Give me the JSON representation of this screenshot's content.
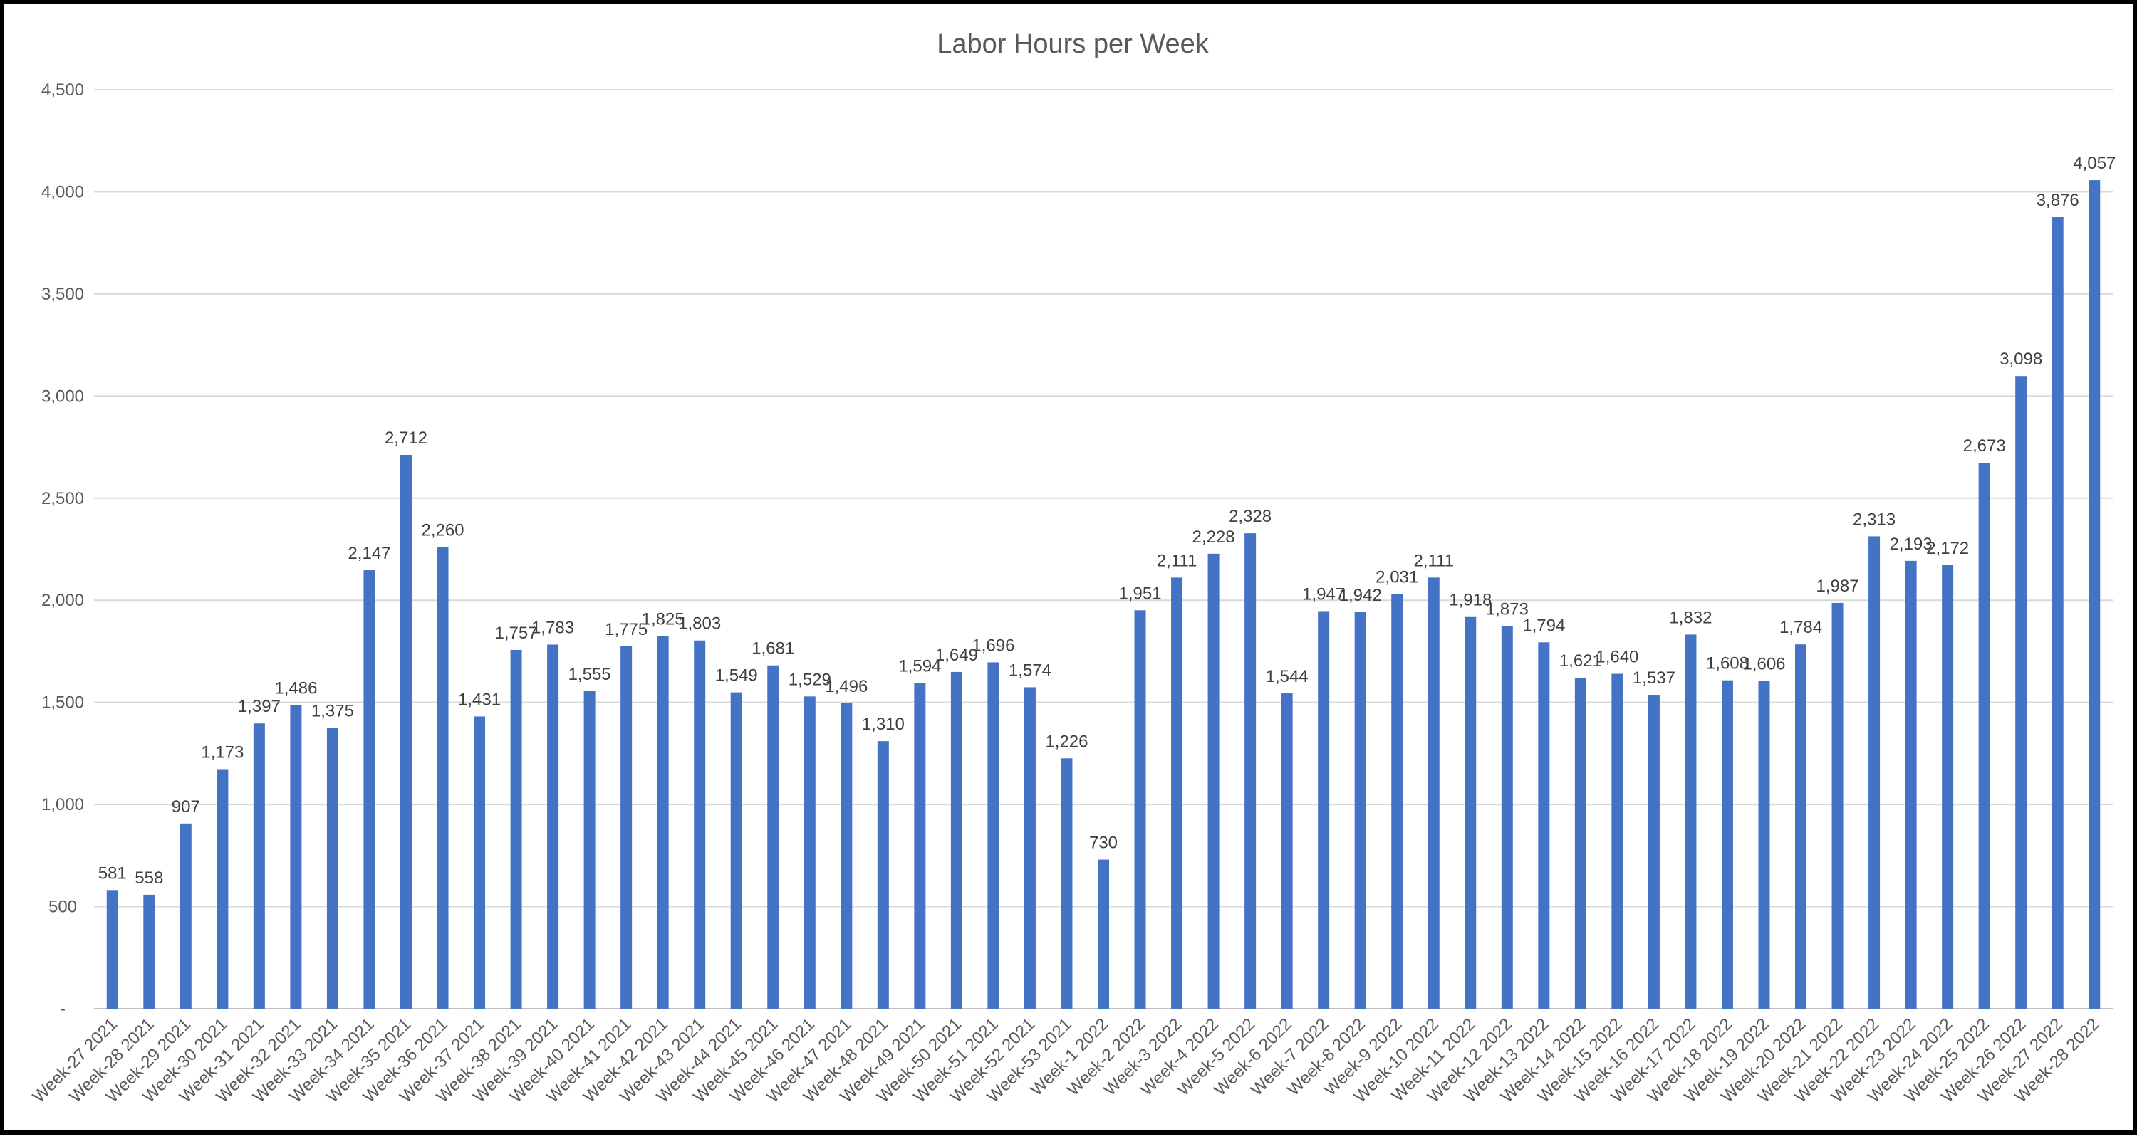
{
  "chart_data": {
    "type": "bar",
    "title": "Labor Hours per Week",
    "xlabel": "",
    "ylabel": "",
    "ylim": [
      0,
      4500
    ],
    "yticks": [
      {
        "value": 0,
        "label": "-"
      },
      {
        "value": 500,
        "label": "500"
      },
      {
        "value": 1000,
        "label": "1,000"
      },
      {
        "value": 1500,
        "label": "1,500"
      },
      {
        "value": 2000,
        "label": "2,000"
      },
      {
        "value": 2500,
        "label": "2,500"
      },
      {
        "value": 3000,
        "label": "3,000"
      },
      {
        "value": 3500,
        "label": "3,500"
      },
      {
        "value": 4000,
        "label": "4,000"
      },
      {
        "value": 4500,
        "label": "4,500"
      }
    ],
    "grid": true,
    "legend": "none",
    "bar_color": "#4472C4",
    "categories": [
      "Week-27 2021",
      "Week-28 2021",
      "Week-29 2021",
      "Week-30 2021",
      "Week-31 2021",
      "Week-32 2021",
      "Week-33 2021",
      "Week-34 2021",
      "Week-35 2021",
      "Week-36 2021",
      "Week-37 2021",
      "Week-38 2021",
      "Week-39 2021",
      "Week-40 2021",
      "Week-41 2021",
      "Week-42 2021",
      "Week-43 2021",
      "Week-44 2021",
      "Week-45 2021",
      "Week-46 2021",
      "Week-47 2021",
      "Week-48 2021",
      "Week-49 2021",
      "Week-50 2021",
      "Week-51 2021",
      "Week-52 2021",
      "Week-53 2021",
      "Week-1 2022",
      "Week-2 2022",
      "Week-3 2022",
      "Week-4 2022",
      "Week-5 2022",
      "Week-6 2022",
      "Week-7 2022",
      "Week-8 2022",
      "Week-9 2022",
      "Week-10 2022",
      "Week-11 2022",
      "Week-12 2022",
      "Week-13 2022",
      "Week-14 2022",
      "Week-15 2022",
      "Week-16 2022",
      "Week-17 2022",
      "Week-18 2022",
      "Week-19 2022",
      "Week-20 2022",
      "Week-21 2022",
      "Week-22 2022",
      "Week-23 2022",
      "Week-24 2022",
      "Week-25 2022",
      "Week-26 2022",
      "Week-27 2022",
      "Week-28 2022"
    ],
    "values": [
      581,
      558,
      907,
      1173,
      1397,
      1486,
      1375,
      2147,
      2712,
      2260,
      1431,
      1757,
      1783,
      1555,
      1775,
      1825,
      1803,
      1549,
      1681,
      1529,
      1496,
      1310,
      1594,
      1649,
      1696,
      1574,
      1226,
      730,
      1951,
      2111,
      2228,
      2328,
      1544,
      1947,
      1942,
      2031,
      2111,
      1918,
      1873,
      1794,
      1621,
      1640,
      1537,
      1832,
      1608,
      1606,
      1784,
      1987,
      2313,
      2193,
      2172,
      2673,
      3098,
      3876,
      4057
    ],
    "data_labels": [
      "581",
      "558",
      "907",
      "1,173",
      "1,397",
      "1,486",
      "1,375",
      "2,147",
      "2,712",
      "2,260",
      "1,431",
      "1,757",
      "1,783",
      "1,555",
      "1,775",
      "1,825",
      "1,803",
      "1,549",
      "1,681",
      "1,529",
      "1,496",
      "1,310",
      "1,594",
      "1,649",
      "1,696",
      "1,574",
      "1,226",
      "730",
      "1,951",
      "2,111",
      "2,228",
      "2,328",
      "1,544",
      "1,947",
      "1,942",
      "2,031",
      "2,111",
      "1,918",
      "1,873",
      "1,794",
      "1,621",
      "1,640",
      "1,537",
      "1,832",
      "1,608",
      "1,606",
      "1,784",
      "1,987",
      "2,313",
      "2,193",
      "2,172",
      "2,673",
      "3,098",
      "3,876",
      "4,057"
    ]
  }
}
